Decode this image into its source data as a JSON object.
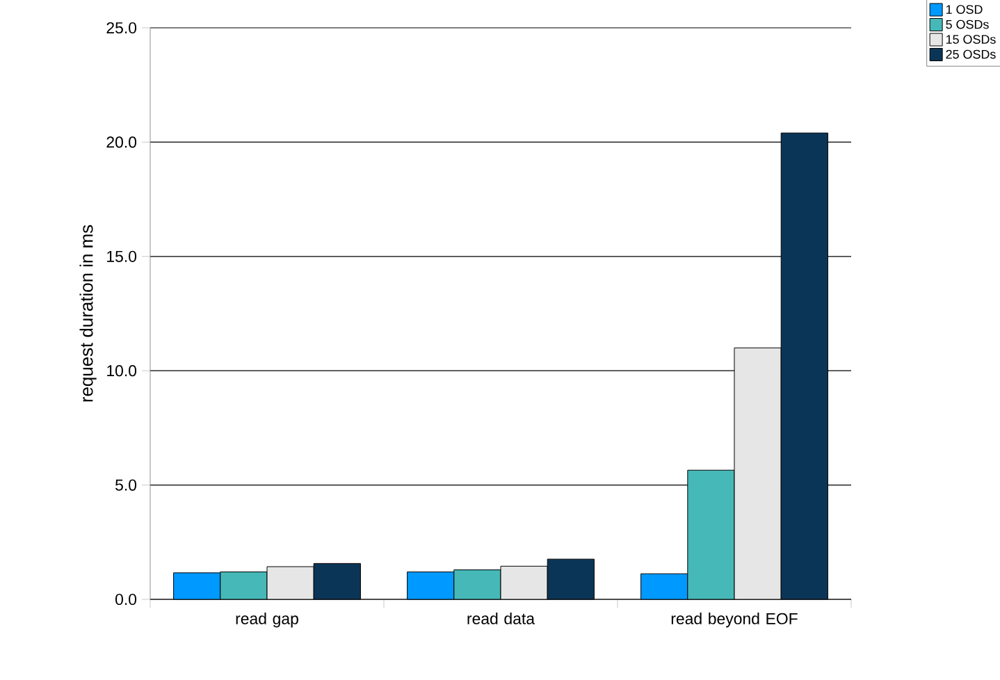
{
  "chart_data": {
    "type": "bar",
    "ylabel": "request duration in ms",
    "categories": [
      "read gap",
      "read data",
      "read beyond EOF"
    ],
    "series": [
      {
        "name": "1 OSD",
        "color": "#0099ff",
        "values": [
          1.16,
          1.2,
          1.12
        ]
      },
      {
        "name": "5 OSDs",
        "color": "#46b8b8",
        "values": [
          1.2,
          1.29,
          5.65
        ]
      },
      {
        "name": "15 OSDs",
        "color": "#e6e6e6",
        "values": [
          1.43,
          1.45,
          11.0
        ]
      },
      {
        "name": "25 OSDs",
        "color": "#0b3556",
        "values": [
          1.57,
          1.76,
          20.4
        ]
      }
    ],
    "ylim": [
      0,
      25
    ],
    "yticks": [
      {
        "value": 0,
        "label": "0.0"
      },
      {
        "value": 5,
        "label": "5.0"
      },
      {
        "value": 10,
        "label": "10.0"
      },
      {
        "value": 15,
        "label": "15.0"
      },
      {
        "value": 20,
        "label": "20.0"
      },
      {
        "value": 25,
        "label": "25.0"
      }
    ],
    "grid": "y",
    "legend": "top right"
  }
}
